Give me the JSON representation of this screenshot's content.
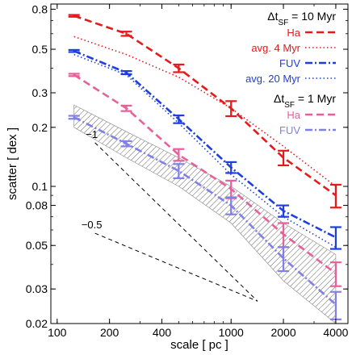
{
  "chart_data": {
    "type": "line",
    "xlabel": "scale [ pc ]",
    "ylabel": "scatter [ dex ]",
    "xscale": "log",
    "yscale": "log",
    "xlim": [
      92,
      4700
    ],
    "ylim": [
      0.02,
      0.85
    ],
    "grid": false,
    "legend_placement": "top-right",
    "x_ticks": [
      100,
      200,
      400,
      1000,
      2000,
      4000
    ],
    "x_tick_labels": [
      "100",
      "200",
      "400",
      "1000",
      "2000",
      "4000"
    ],
    "y_ticks": [
      0.02,
      0.03,
      0.05,
      0.08,
      0.1,
      0.2,
      0.3,
      0.5,
      0.8
    ],
    "y_tick_labels": [
      "0.02",
      "0.03",
      "0.05",
      "0.08",
      "0.1",
      "0.2",
      "0.3",
      "0.5",
      "0.8"
    ],
    "legend_groups": [
      {
        "title": "Δt_SF = 10 Myr",
        "title_main": "Δt",
        "title_sub": "SF",
        "title_rest": " = 10 Myr",
        "entries": [
          "Ha",
          "avg. 4 Myr",
          "FUV",
          "avg. 20 Myr"
        ]
      },
      {
        "title": "Δt_SF = 1 Myr",
        "title_main": "Δt",
        "title_sub": "SF",
        "title_rest": " = 1 Myr",
        "entries": [
          "Ha",
          "FUV"
        ]
      }
    ],
    "series": [
      {
        "name": "Ha",
        "group": "Δt_SF = 10 Myr",
        "color": "#e41a1c",
        "dash": "dashed",
        "x": [
          125,
          250,
          500,
          1000,
          2000,
          4000
        ],
        "y": [
          0.74,
          0.6,
          0.4,
          0.25,
          0.14,
          0.09
        ],
        "err": [
          0.008,
          0.015,
          0.018,
          0.022,
          0.012,
          0.012
        ]
      },
      {
        "name": "avg. 4 Myr",
        "group": "Δt_SF = 10 Myr",
        "color": "#e41a1c",
        "dash": "dotted",
        "x": [
          125,
          250,
          500,
          1000,
          2000,
          4000
        ],
        "y": [
          0.58,
          0.47,
          0.36,
          0.25,
          0.16,
          0.1
        ],
        "err": null
      },
      {
        "name": "FUV",
        "group": "Δt_SF = 10 Myr",
        "color": "#1f3fdc",
        "dash": "dashdot",
        "x": [
          125,
          250,
          500,
          1000,
          2000,
          4000
        ],
        "y": [
          0.49,
          0.38,
          0.22,
          0.125,
          0.075,
          0.055
        ],
        "err": [
          0.006,
          0.007,
          0.01,
          0.008,
          0.005,
          0.007
        ]
      },
      {
        "name": "avg. 20 Myr",
        "group": "Δt_SF = 10 Myr",
        "color": "#1f3fdc",
        "dash": "dotted",
        "x": [
          125,
          250,
          500,
          1000,
          2000,
          4000
        ],
        "y": [
          0.47,
          0.37,
          0.21,
          0.115,
          0.07,
          0.049
        ],
        "err": null
      },
      {
        "name": "Ha",
        "group": "Δt_SF = 1 Myr",
        "color": "#e8609a",
        "dash": "dashed",
        "x": [
          125,
          250,
          500,
          1000,
          2000,
          4000
        ],
        "y": [
          0.37,
          0.25,
          0.145,
          0.097,
          0.057,
          0.036
        ],
        "err": [
          0.005,
          0.008,
          0.01,
          0.01,
          0.008,
          0.005
        ]
      },
      {
        "name": "FUV",
        "group": "Δt_SF = 1 Myr",
        "color": "#8080e8",
        "dash": "dashdot",
        "x": [
          125,
          250,
          500,
          1000,
          2000,
          4000
        ],
        "y": [
          0.225,
          0.165,
          0.12,
          0.08,
          0.043,
          0.025
        ],
        "err": [
          0.004,
          0.005,
          0.01,
          0.008,
          0.006,
          0.004
        ]
      }
    ],
    "shaded_band": {
      "x": [
        125,
        250,
        500,
        1000,
        2000,
        4000
      ],
      "upper": [
        0.26,
        0.19,
        0.14,
        0.1,
        0.065,
        0.045
      ],
      "lower": [
        0.2,
        0.14,
        0.1,
        0.065,
        0.033,
        0.02
      ]
    },
    "reference_lines": [
      {
        "label": "−1",
        "slope": -1,
        "x": [
          165,
          1420
        ],
        "y": [
          0.167,
          0.026
        ]
      },
      {
        "label": "−0.5",
        "slope": -0.5,
        "x": [
          165,
          1420
        ],
        "y": [
          0.0577,
          0.026
        ]
      }
    ]
  }
}
